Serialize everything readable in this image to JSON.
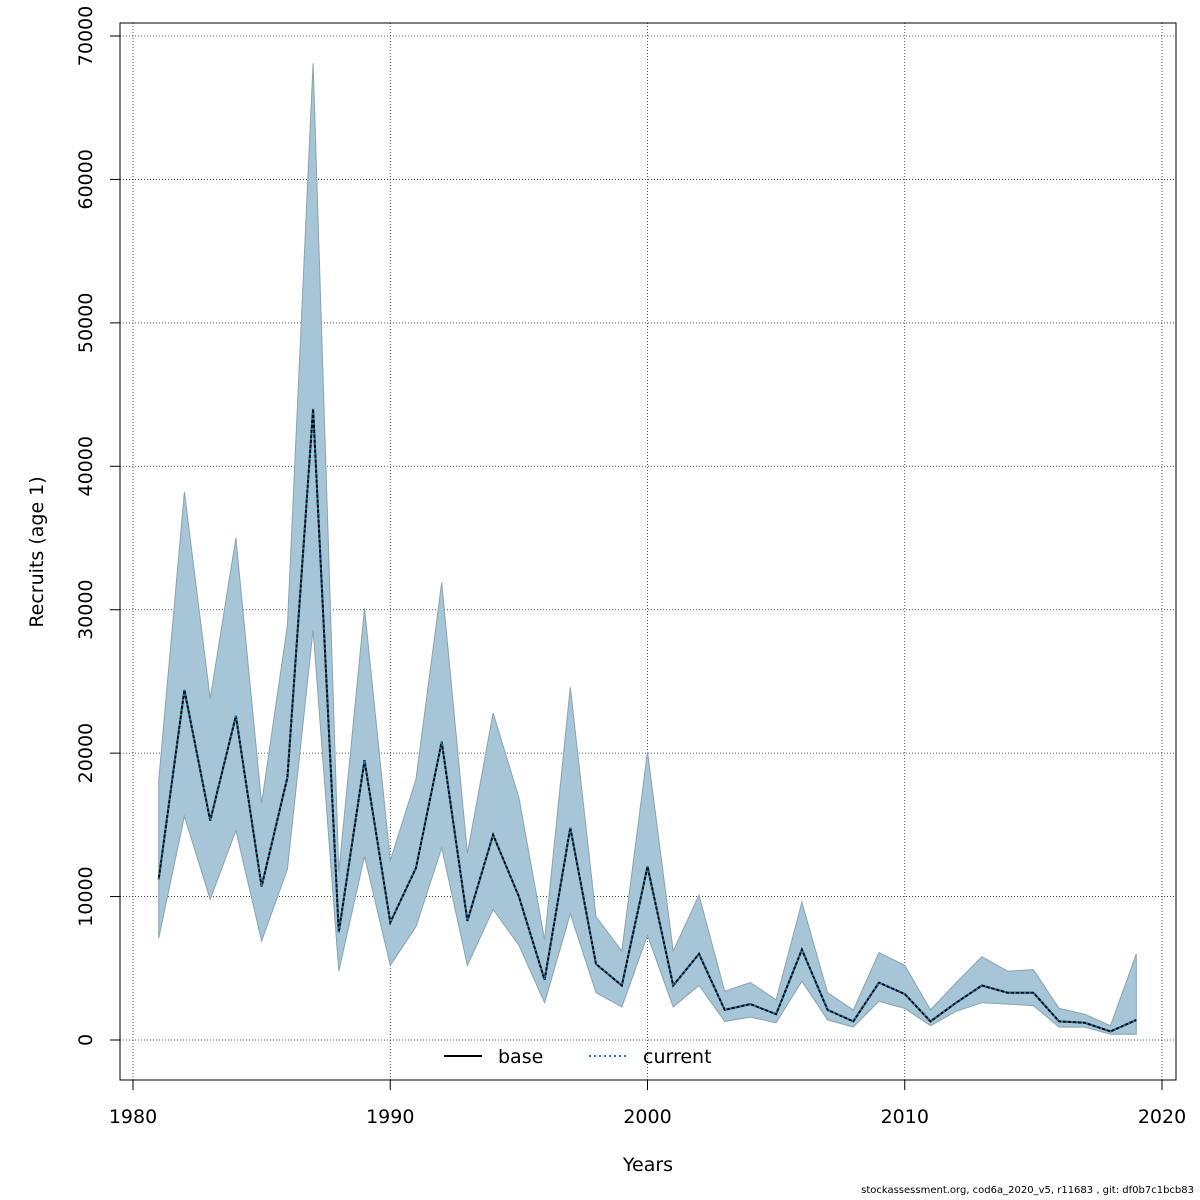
{
  "chart_data": {
    "type": "line",
    "xlabel": "Years",
    "ylabel": "Recruits (age 1)",
    "xlim": [
      1980,
      2020
    ],
    "ylim": [
      0,
      70000
    ],
    "xticks": [
      1980,
      1990,
      2000,
      2010,
      2020
    ],
    "yticks": [
      0,
      10000,
      20000,
      30000,
      40000,
      50000,
      60000,
      70000
    ],
    "grid": true,
    "band_color": "#a6c5d6",
    "band_edge_color": "#8aa3b1",
    "x": [
      1981,
      1982,
      1983,
      1984,
      1985,
      1986,
      1987,
      1988,
      1989,
      1990,
      1991,
      1992,
      1993,
      1994,
      1995,
      1996,
      1997,
      1998,
      1999,
      2000,
      2001,
      2002,
      2003,
      2004,
      2005,
      2006,
      2007,
      2008,
      2009,
      2010,
      2011,
      2012,
      2013,
      2014,
      2015,
      2016,
      2017,
      2018,
      2019
    ],
    "series": [
      {
        "name": "base",
        "color": "#000000",
        "dash": "solid",
        "values": [
          11200,
          24400,
          15300,
          22600,
          10700,
          18300,
          44000,
          7500,
          19500,
          8200,
          12000,
          20800,
          8300,
          14300,
          10000,
          4200,
          14800,
          5300,
          3800,
          12100,
          3800,
          6000,
          2100,
          2500,
          1800,
          6300,
          2100,
          1300,
          4000,
          3200,
          1300,
          2600,
          3800,
          3300,
          3300,
          1300,
          1200,
          600,
          1400
        ]
      },
      {
        "name": "current",
        "color": "#1f77b4",
        "dash": "dotted",
        "values": [
          11200,
          24400,
          15300,
          22600,
          10700,
          18300,
          44000,
          7500,
          19500,
          8200,
          12000,
          20800,
          8300,
          14300,
          10000,
          4200,
          14800,
          5300,
          3800,
          12100,
          3800,
          6000,
          2100,
          2500,
          1800,
          6300,
          2100,
          1300,
          4000,
          3200,
          1300,
          2600,
          3800,
          3300,
          3300,
          1300,
          1200,
          600,
          1400
        ]
      }
    ],
    "lower": [
      7100,
      15600,
      9800,
      14600,
      6900,
      11900,
      28600,
      4800,
      12800,
      5200,
      7900,
      13400,
      5200,
      9100,
      6600,
      2600,
      8800,
      3300,
      2300,
      7300,
      2300,
      3800,
      1300,
      1600,
      1200,
      4100,
      1400,
      900,
      2700,
      2200,
      1000,
      2000,
      2600,
      2500,
      2400,
      900,
      900,
      400,
      400
    ],
    "upper": [
      18100,
      38200,
      23800,
      35000,
      16500,
      28900,
      68100,
      11700,
      30100,
      12500,
      18200,
      31900,
      13000,
      22800,
      16900,
      7000,
      24600,
      8600,
      6200,
      20100,
      6200,
      10100,
      3400,
      4000,
      2800,
      9600,
      3300,
      2100,
      6100,
      5200,
      2100,
      4000,
      5800,
      4800,
      4900,
      2200,
      1800,
      1000,
      6000
    ],
    "legend_position": "bottom"
  },
  "footer": "stockassessment.org, cod6a_2020_v5, r11683 , git: df0b7c1bcb83"
}
